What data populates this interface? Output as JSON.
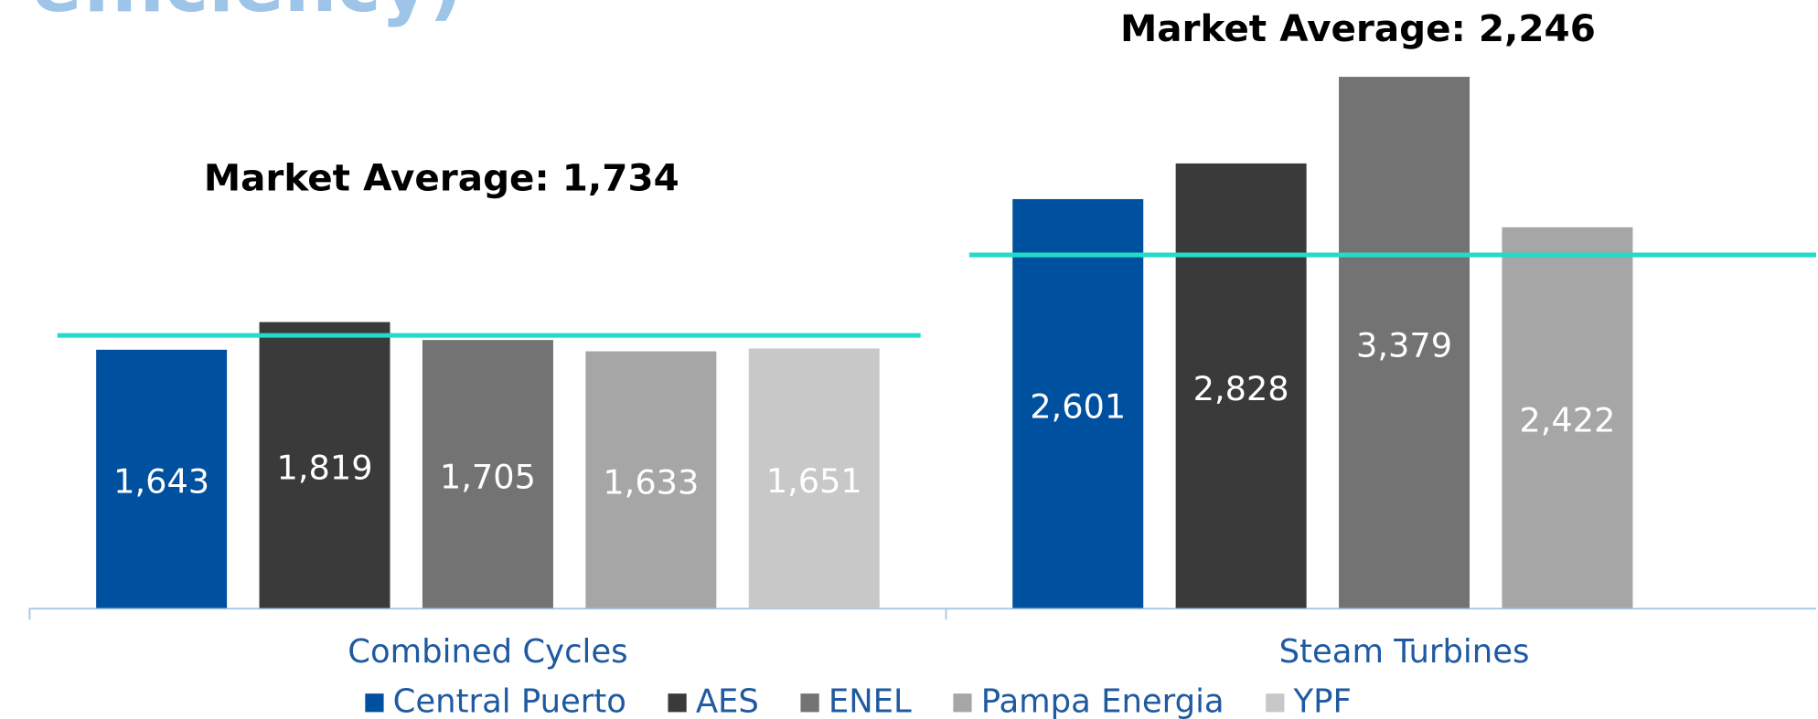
{
  "chart_data": {
    "type": "bar",
    "title": "efficiency)",
    "categories": [
      "Combined Cycles",
      "Steam Turbines"
    ],
    "series": [
      {
        "name": "Central Puerto",
        "color": "#0050a0",
        "values": [
          1643,
          2601
        ],
        "value_labels": [
          "1,643",
          "2,601"
        ]
      },
      {
        "name": "AES",
        "color": "#3a3a3a",
        "values": [
          1819,
          2828
        ],
        "value_labels": [
          "1,819",
          "2,828"
        ]
      },
      {
        "name": "ENEL",
        "color": "#737373",
        "values": [
          1705,
          3379
        ],
        "value_labels": [
          "1,705",
          "3,379"
        ]
      },
      {
        "name": "Pampa Energia",
        "color": "#a6a6a6",
        "values": [
          1633,
          2422
        ],
        "value_labels": [
          "1,633",
          "2,422"
        ]
      },
      {
        "name": "YPF",
        "color": "#c8c8c8",
        "values": [
          1651,
          null
        ],
        "value_labels": [
          "1,651",
          null
        ]
      }
    ],
    "annotations": [
      {
        "text": "Market Average: 1,734",
        "value": 1734
      },
      {
        "text": "Market Average: 2,246",
        "value": 2246
      }
    ],
    "average_line_color": "#22dcc8",
    "ylim": [
      0,
      3500
    ]
  }
}
